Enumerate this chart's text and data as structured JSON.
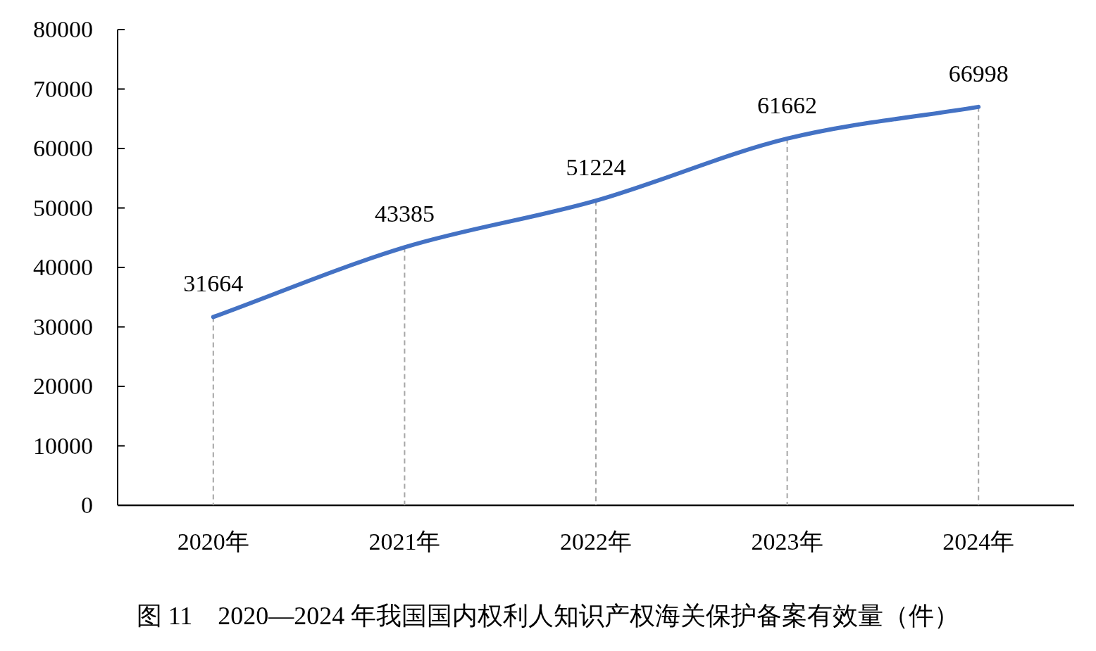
{
  "chart_data": {
    "type": "line",
    "title": "图 11　2020—2024 年我国国内权利人知识产权海关保护备案有效量（件）",
    "categories": [
      "2020年",
      "2021年",
      "2022年",
      "2023年",
      "2024年"
    ],
    "series": [
      {
        "color": "#4472c4",
        "values": [
          31664,
          43385,
          51224,
          61662,
          66998
        ]
      }
    ],
    "ylim": [
      0,
      80000
    ],
    "yticks": [
      0,
      10000,
      20000,
      30000,
      40000,
      50000,
      60000,
      70000,
      80000
    ],
    "data_labels": true,
    "grid": "x",
    "marker": "none",
    "line_style": "solid"
  }
}
